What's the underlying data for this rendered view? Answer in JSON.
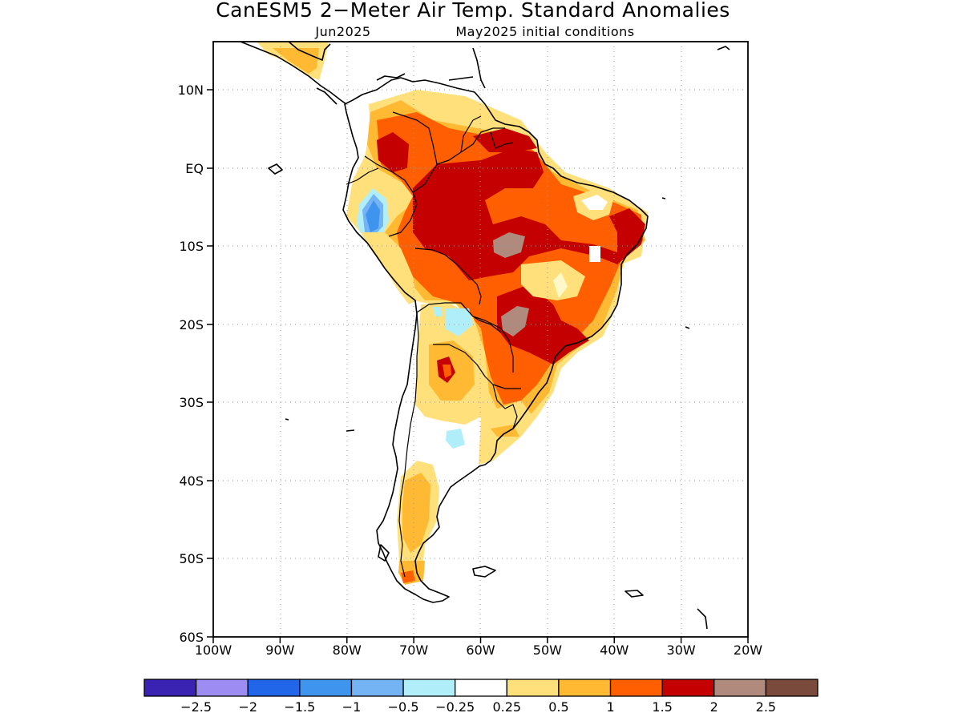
{
  "title": "CanESM5 2−Meter Air Temp. Standard Anomalies",
  "subtitle_left": "Jun2025",
  "subtitle_right": "May2025 initial conditions",
  "map": {
    "lat_labels": [
      "10N",
      "EQ",
      "10S",
      "20S",
      "30S",
      "40S",
      "50S",
      "60S"
    ],
    "lon_labels": [
      "100W",
      "90W",
      "80W",
      "70W",
      "60W",
      "50W",
      "40W",
      "30W",
      "20W"
    ]
  },
  "colorbar": {
    "colors": [
      "#3a22b3",
      "#9d8cf2",
      "#2166e8",
      "#3f95ee",
      "#74b3f4",
      "#b0eefa",
      "#ffffff",
      "#ffe07a",
      "#ffb932",
      "#ff5f00",
      "#c50000",
      "#b08a7d",
      "#7a4b3c"
    ],
    "labels": [
      "−2.5",
      "−2",
      "−1.5",
      "−1",
      "−0.5",
      "−0.25",
      "0.25",
      "0.5",
      "1",
      "1.5",
      "2",
      "2.5"
    ]
  }
}
